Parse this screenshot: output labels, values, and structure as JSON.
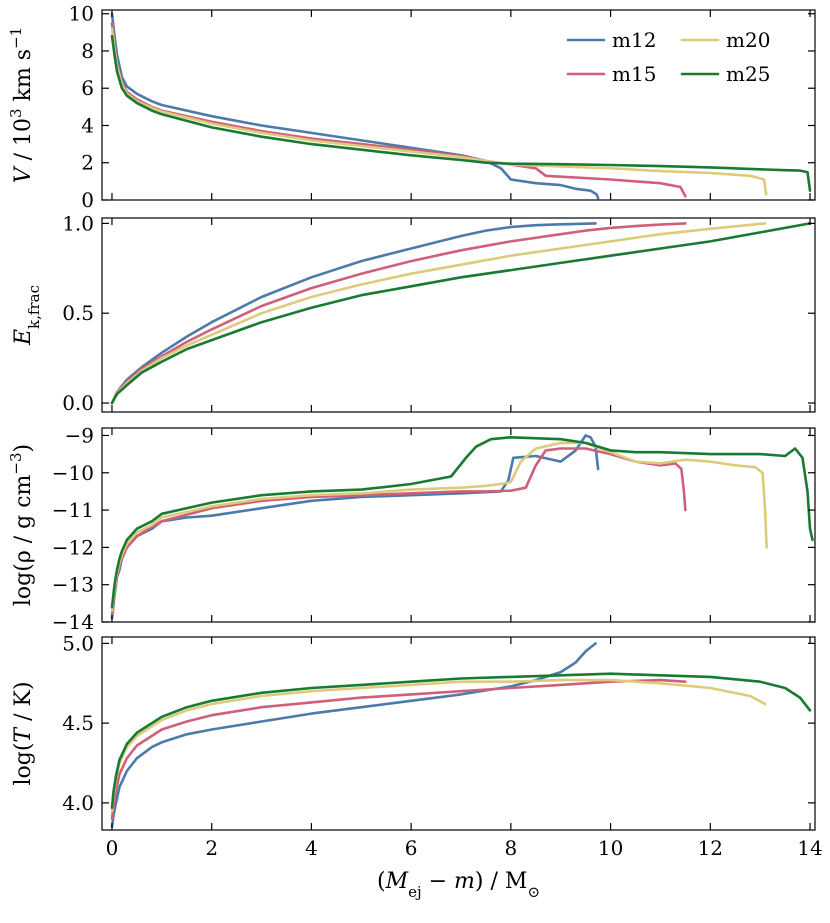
{
  "chart_data": {
    "type": "line",
    "xlabel": "(M_ej − m) / M_⊙",
    "xlim": [
      -0.2,
      14.1
    ],
    "xticks": [
      0,
      2,
      4,
      6,
      8,
      10,
      12,
      14
    ],
    "legend": {
      "placement": "top-right",
      "entries": [
        "m12",
        "m15",
        "m20",
        "m25"
      ]
    },
    "colors": {
      "m12": "#4c7bab",
      "m15": "#d0607a",
      "m20": "#dccb7a",
      "m25": "#197a33"
    },
    "panels": [
      {
        "id": "velocity",
        "ylabel": "V / 10^3 km s^-1",
        "ylim": [
          0,
          10.2
        ],
        "yticks": [
          0,
          2,
          4,
          6,
          8,
          10
        ],
        "series": [
          {
            "name": "m12",
            "x": [
              0,
              0.05,
              0.1,
              0.2,
              0.3,
              0.5,
              0.8,
              1,
              1.5,
              2,
              3,
              4,
              5,
              6,
              7,
              7.5,
              7.8,
              8,
              8.5,
              9,
              9.3,
              9.6,
              9.72,
              9.75
            ],
            "y": [
              10,
              8.8,
              7.8,
              6.6,
              6.1,
              5.7,
              5.3,
              5.1,
              4.8,
              4.5,
              4.0,
              3.6,
              3.2,
              2.8,
              2.4,
              2.1,
              1.7,
              1.1,
              0.9,
              0.8,
              0.6,
              0.5,
              0.3,
              0.1
            ]
          },
          {
            "name": "m15",
            "x": [
              0,
              0.05,
              0.1,
              0.2,
              0.3,
              0.5,
              0.8,
              1,
              2,
              3,
              4,
              5,
              6,
              7,
              7.5,
              8,
              8.5,
              8.7,
              9,
              10,
              11,
              11.4,
              11.5
            ],
            "y": [
              9.5,
              8.3,
              7.3,
              6.3,
              5.8,
              5.4,
              5.0,
              4.8,
              4.2,
              3.7,
              3.3,
              3.0,
              2.7,
              2.35,
              2.1,
              1.9,
              1.7,
              1.3,
              1.25,
              1.1,
              0.9,
              0.7,
              0.2
            ]
          },
          {
            "name": "m20",
            "x": [
              0,
              0.05,
              0.1,
              0.2,
              0.3,
              0.5,
              0.8,
              1,
              2,
              3,
              4,
              5,
              6,
              7,
              7.5,
              8,
              9,
              10,
              11,
              12,
              12.8,
              13.08,
              13.12
            ],
            "y": [
              9.2,
              8.1,
              7.2,
              6.2,
              5.7,
              5.3,
              4.95,
              4.75,
              4.1,
              3.6,
              3.2,
              2.9,
              2.6,
              2.3,
              2.1,
              1.9,
              1.8,
              1.7,
              1.55,
              1.45,
              1.3,
              1.1,
              0.3
            ]
          },
          {
            "name": "m25",
            "x": [
              0,
              0.05,
              0.1,
              0.2,
              0.3,
              0.5,
              0.8,
              1,
              2,
              3,
              4,
              5,
              6,
              7,
              7.5,
              8,
              9,
              10,
              11,
              12,
              13,
              13.5,
              13.8,
              13.95,
              14.0
            ],
            "y": [
              8.8,
              7.8,
              6.9,
              6.0,
              5.6,
              5.2,
              4.8,
              4.6,
              3.9,
              3.4,
              3.0,
              2.7,
              2.4,
              2.15,
              2.0,
              1.95,
              1.92,
              1.88,
              1.82,
              1.75,
              1.65,
              1.6,
              1.58,
              1.5,
              0.5
            ]
          }
        ]
      },
      {
        "id": "energy",
        "ylabel": "E_k,frac",
        "ylim": [
          -0.05,
          1.03
        ],
        "yticks": [
          0.0,
          0.5,
          1.0
        ],
        "series": [
          {
            "name": "m12",
            "x": [
              0,
              0.1,
              0.3,
              0.6,
              1,
              1.5,
              2,
              3,
              4,
              5,
              6,
              7,
              7.5,
              8,
              8.5,
              9,
              9.7
            ],
            "y": [
              0,
              0.06,
              0.13,
              0.2,
              0.28,
              0.37,
              0.45,
              0.59,
              0.7,
              0.79,
              0.86,
              0.93,
              0.96,
              0.98,
              0.99,
              0.995,
              1.0
            ]
          },
          {
            "name": "m15",
            "x": [
              0,
              0.1,
              0.3,
              0.6,
              1,
              1.5,
              2,
              3,
              4,
              5,
              6,
              7,
              8,
              9,
              9.5,
              10,
              10.5,
              11,
              11.5
            ],
            "y": [
              0,
              0.06,
              0.12,
              0.19,
              0.26,
              0.34,
              0.41,
              0.54,
              0.64,
              0.72,
              0.79,
              0.85,
              0.9,
              0.94,
              0.96,
              0.975,
              0.985,
              0.993,
              1.0
            ]
          },
          {
            "name": "m20",
            "x": [
              0,
              0.1,
              0.3,
              0.6,
              1,
              1.5,
              2,
              3,
              4,
              5,
              6,
              7,
              8,
              9,
              10,
              11,
              12,
              13.1
            ],
            "y": [
              0,
              0.055,
              0.11,
              0.18,
              0.25,
              0.32,
              0.38,
              0.5,
              0.59,
              0.66,
              0.72,
              0.77,
              0.82,
              0.86,
              0.9,
              0.94,
              0.97,
              1.0
            ]
          },
          {
            "name": "m25",
            "x": [
              0,
              0.1,
              0.3,
              0.6,
              1,
              1.5,
              2,
              3,
              4,
              5,
              6,
              7,
              8,
              9,
              10,
              11,
              12,
              13,
              14
            ],
            "y": [
              0,
              0.05,
              0.1,
              0.17,
              0.23,
              0.3,
              0.35,
              0.45,
              0.53,
              0.6,
              0.65,
              0.7,
              0.74,
              0.78,
              0.82,
              0.86,
              0.9,
              0.95,
              1.0
            ]
          }
        ]
      },
      {
        "id": "density",
        "ylabel": "log(ρ / g cm^-3)",
        "ylim": [
          -14,
          -8.8
        ],
        "yticks": [
          -9,
          -10,
          -11,
          -12,
          -13,
          -14
        ],
        "series": [
          {
            "name": "m12",
            "x": [
              0,
              0.05,
              0.1,
              0.15,
              0.2,
              0.3,
              0.5,
              0.8,
              1,
              1.5,
              2,
              3,
              4,
              5,
              6,
              7,
              7.8,
              7.95,
              8.05,
              8.5,
              9,
              9.3,
              9.5,
              9.6,
              9.7,
              9.75
            ],
            "y": [
              -13.9,
              -13.3,
              -12.8,
              -12.6,
              -12.3,
              -12.0,
              -11.7,
              -11.5,
              -11.3,
              -11.2,
              -11.15,
              -10.95,
              -10.75,
              -10.65,
              -10.6,
              -10.55,
              -10.5,
              -10.2,
              -9.6,
              -9.55,
              -9.7,
              -9.4,
              -9.0,
              -9.05,
              -9.3,
              -9.9
            ]
          },
          {
            "name": "m15",
            "x": [
              0,
              0.05,
              0.1,
              0.15,
              0.2,
              0.3,
              0.5,
              0.8,
              1,
              2,
              3,
              4,
              5,
              6,
              7,
              7.5,
              8,
              8.3,
              8.5,
              8.7,
              9,
              9.5,
              10,
              10.5,
              11,
              11.3,
              11.42,
              11.47,
              11.5
            ],
            "y": [
              -13.8,
              -13.2,
              -12.8,
              -12.5,
              -12.3,
              -12.0,
              -11.7,
              -11.45,
              -11.3,
              -10.95,
              -10.75,
              -10.65,
              -10.6,
              -10.55,
              -10.5,
              -10.5,
              -10.48,
              -10.4,
              -9.8,
              -9.4,
              -9.35,
              -9.35,
              -9.5,
              -9.7,
              -9.8,
              -9.75,
              -9.9,
              -10.5,
              -11.0
            ]
          },
          {
            "name": "m20",
            "x": [
              0,
              0.05,
              0.1,
              0.15,
              0.2,
              0.3,
              0.5,
              0.8,
              1,
              2,
              3,
              4,
              5,
              6,
              7,
              7.5,
              7.8,
              8,
              8.2,
              8.5,
              9,
              9.5,
              10,
              10.5,
              11,
              11.5,
              12,
              12.5,
              12.9,
              13.05,
              13.1,
              13.13
            ],
            "y": [
              -13.7,
              -13.1,
              -12.7,
              -12.4,
              -12.2,
              -11.9,
              -11.6,
              -11.4,
              -11.2,
              -10.9,
              -10.7,
              -10.6,
              -10.55,
              -10.45,
              -10.4,
              -10.35,
              -10.3,
              -10.25,
              -9.7,
              -9.35,
              -9.2,
              -9.2,
              -9.45,
              -9.7,
              -9.75,
              -9.65,
              -9.7,
              -9.8,
              -9.85,
              -10.0,
              -11.0,
              -12.0
            ]
          },
          {
            "name": "m25",
            "x": [
              0,
              0.05,
              0.1,
              0.15,
              0.2,
              0.3,
              0.5,
              0.8,
              1,
              2,
              3,
              4,
              5,
              6,
              6.8,
              7.1,
              7.3,
              7.6,
              8,
              9,
              9.5,
              10,
              10.5,
              11,
              12,
              13,
              13.5,
              13.7,
              13.85,
              13.95,
              14.0,
              14.05
            ],
            "y": [
              -13.6,
              -13.0,
              -12.6,
              -12.3,
              -12.1,
              -11.8,
              -11.5,
              -11.3,
              -11.1,
              -10.8,
              -10.6,
              -10.5,
              -10.45,
              -10.3,
              -10.1,
              -9.6,
              -9.3,
              -9.1,
              -9.05,
              -9.1,
              -9.2,
              -9.4,
              -9.45,
              -9.45,
              -9.5,
              -9.5,
              -9.55,
              -9.35,
              -9.6,
              -10.5,
              -11.5,
              -11.8
            ]
          }
        ]
      },
      {
        "id": "temperature",
        "ylabel": "log(T / K)",
        "ylim": [
          3.83,
          5.04
        ],
        "yticks": [
          4.0,
          4.5,
          5.0
        ],
        "series": [
          {
            "name": "m12",
            "x": [
              0,
              0.03,
              0.08,
              0.15,
              0.3,
              0.5,
              0.8,
              1,
              1.5,
              2,
              3,
              4,
              5,
              6,
              7,
              8,
              8.5,
              9,
              9.3,
              9.5,
              9.7
            ],
            "y": [
              3.85,
              3.92,
              4.0,
              4.1,
              4.2,
              4.28,
              4.35,
              4.38,
              4.43,
              4.46,
              4.51,
              4.56,
              4.6,
              4.64,
              4.68,
              4.73,
              4.77,
              4.82,
              4.88,
              4.95,
              5.0
            ]
          },
          {
            "name": "m15",
            "x": [
              0,
              0.03,
              0.08,
              0.15,
              0.3,
              0.5,
              0.8,
              1,
              1.5,
              2,
              3,
              4,
              5,
              6,
              7,
              8,
              9,
              10,
              11,
              11.5
            ],
            "y": [
              3.9,
              3.98,
              4.08,
              4.18,
              4.28,
              4.36,
              4.42,
              4.46,
              4.51,
              4.55,
              4.6,
              4.63,
              4.66,
              4.68,
              4.7,
              4.72,
              4.74,
              4.76,
              4.77,
              4.76
            ]
          },
          {
            "name": "m20",
            "x": [
              0,
              0.03,
              0.08,
              0.15,
              0.3,
              0.5,
              0.8,
              1,
              1.5,
              2,
              3,
              4,
              5,
              6,
              7,
              8,
              9,
              10,
              11,
              12,
              12.8,
              13.1
            ],
            "y": [
              3.95,
              4.05,
              4.15,
              4.25,
              4.35,
              4.42,
              4.48,
              4.52,
              4.58,
              4.62,
              4.67,
              4.7,
              4.72,
              4.74,
              4.76,
              4.76,
              4.77,
              4.77,
              4.75,
              4.72,
              4.67,
              4.62
            ]
          },
          {
            "name": "m25",
            "x": [
              0,
              0.03,
              0.08,
              0.15,
              0.3,
              0.5,
              0.8,
              1,
              1.5,
              2,
              3,
              4,
              5,
              6,
              7,
              8,
              9,
              10,
              11,
              12,
              13,
              13.5,
              13.8,
              14.0
            ],
            "y": [
              3.97,
              4.07,
              4.17,
              4.27,
              4.37,
              4.44,
              4.5,
              4.54,
              4.6,
              4.64,
              4.69,
              4.72,
              4.74,
              4.76,
              4.78,
              4.79,
              4.8,
              4.81,
              4.8,
              4.79,
              4.76,
              4.72,
              4.66,
              4.58
            ]
          }
        ]
      }
    ]
  }
}
